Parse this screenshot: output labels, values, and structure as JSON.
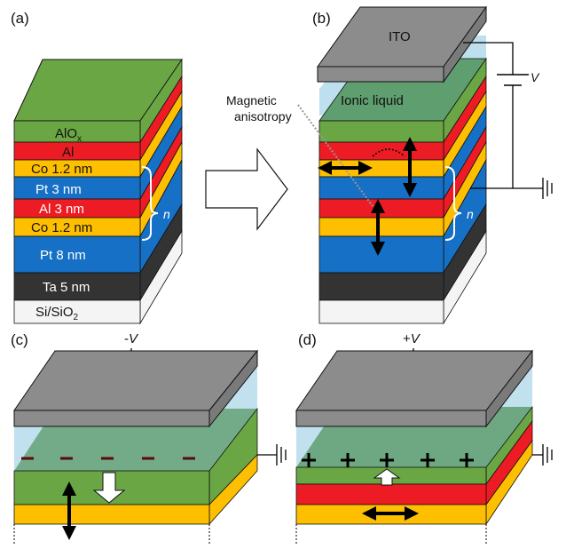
{
  "panels": {
    "a": "(a)",
    "b": "(b)",
    "c": "(c)",
    "d": "(d)"
  },
  "layers_a": {
    "aloxBase": "AlO",
    "aloxSub": "x",
    "al": "Al",
    "co1": "Co 1.2 nm",
    "pt3": "Pt 3 nm",
    "al3": "Al 3 nm",
    "co2": "Co 1.2 nm",
    "pt8": "Pt 8 nm",
    "ta": "Ta 5 nm",
    "siBase": "Si/SiO",
    "siSub": "2"
  },
  "labels": {
    "n": "n",
    "ito": "ITO",
    "ionic": "Ionic liquid",
    "magnetic1": "Magnetic",
    "magnetic2": "anisotropy",
    "V": "V",
    "minusV": "-V",
    "plusV": "+V"
  },
  "colors": {
    "green": "#6aa644",
    "red": "#ed1c24",
    "yellow": "#fdbf00",
    "blue": "#1670c5",
    "dark": "#333333",
    "gray": "#8c8c8c",
    "light": "#f4f4f4",
    "liquid": "#b7dcec"
  }
}
